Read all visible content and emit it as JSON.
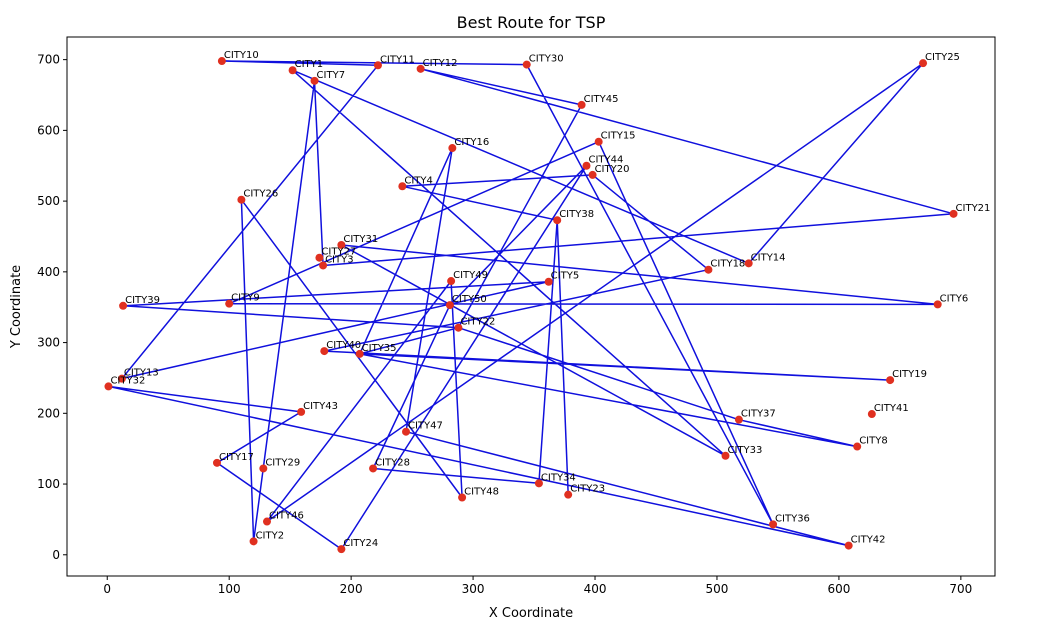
{
  "chart_data": {
    "type": "line",
    "title": "Best Route for TSP",
    "xlabel": "X Coordinate",
    "ylabel": "Y Coordinate",
    "xlim": [
      -33,
      728
    ],
    "ylim": [
      -30,
      732
    ],
    "xticks": [
      0,
      100,
      200,
      300,
      400,
      500,
      600,
      700
    ],
    "yticks": [
      0,
      100,
      200,
      300,
      400,
      500,
      600,
      700
    ],
    "grid": false,
    "colors": {
      "route": "#1010dd",
      "marker": "#e03020",
      "frame": "#000000"
    },
    "cities": {
      "CITY1": [
        152,
        685
      ],
      "CITY2": [
        120,
        19
      ],
      "CITY3": [
        177,
        409
      ],
      "CITY4": [
        242,
        521
      ],
      "CITY5": [
        362,
        386
      ],
      "CITY6": [
        681,
        354
      ],
      "CITY7": [
        170,
        670
      ],
      "CITY8": [
        615,
        153
      ],
      "CITY9": [
        100,
        355
      ],
      "CITY10": [
        94,
        698
      ],
      "CITY11": [
        222,
        692
      ],
      "CITY12": [
        257,
        687
      ],
      "CITY13": [
        12,
        249
      ],
      "CITY14": [
        526,
        412
      ],
      "CITY15": [
        403,
        584
      ],
      "CITY16": [
        283,
        575
      ],
      "CITY17": [
        90,
        130
      ],
      "CITY18": [
        493,
        403
      ],
      "CITY19": [
        642,
        247
      ],
      "CITY20": [
        398,
        537
      ],
      "CITY21": [
        694,
        482
      ],
      "CITY22": [
        288,
        321
      ],
      "CITY23": [
        378,
        85
      ],
      "CITY24": [
        192,
        8
      ],
      "CITY25": [
        669,
        695
      ],
      "CITY26": [
        110,
        502
      ],
      "CITY27": [
        174,
        420
      ],
      "CITY28": [
        218,
        122
      ],
      "CITY29": [
        128,
        122
      ],
      "CITY30": [
        344,
        693
      ],
      "CITY31": [
        192,
        438
      ],
      "CITY32": [
        1,
        238
      ],
      "CITY33": [
        507,
        140
      ],
      "CITY34": [
        354,
        101
      ],
      "CITY35": [
        207,
        284
      ],
      "CITY36": [
        546,
        43
      ],
      "CITY37": [
        518,
        191
      ],
      "CITY38": [
        369,
        473
      ],
      "CITY39": [
        13,
        352
      ],
      "CITY40": [
        178,
        288
      ],
      "CITY41": [
        627,
        199
      ],
      "CITY42": [
        608,
        13
      ],
      "CITY43": [
        159,
        202
      ],
      "CITY44": [
        393,
        550
      ],
      "CITY45": [
        389,
        636
      ],
      "CITY46": [
        131,
        47
      ],
      "CITY47": [
        245,
        174
      ],
      "CITY48": [
        291,
        81
      ],
      "CITY49": [
        282,
        387
      ],
      "CITY50": [
        281,
        353
      ]
    },
    "route": [
      "CITY10",
      "CITY30",
      "CITY36",
      "CITY15",
      "CITY9",
      "CITY6",
      "CITY31",
      "CITY33",
      "CITY1",
      "CITY14",
      "CITY25",
      "CITY46",
      "CITY49",
      "CITY48",
      "CITY26",
      "CITY2",
      "CITY7",
      "CITY3",
      "CITY21",
      "CITY12",
      "CITY45",
      "CITY22",
      "CITY35",
      "CITY19",
      "CITY40",
      "CITY18",
      "CITY20",
      "CITY4",
      "CITY38",
      "CITY23",
      "CITY38",
      "CITY34",
      "CITY28",
      "CITY50",
      "CITY44",
      "CITY24",
      "CITY17",
      "CITY43",
      "CITY32",
      "CITY42",
      "CITY47",
      "CITY16",
      "CITY35",
      "CITY8",
      "CITY37",
      "CITY22",
      "CITY39",
      "CITY5",
      "CITY13",
      "CITY11",
      "CITY10"
    ]
  }
}
